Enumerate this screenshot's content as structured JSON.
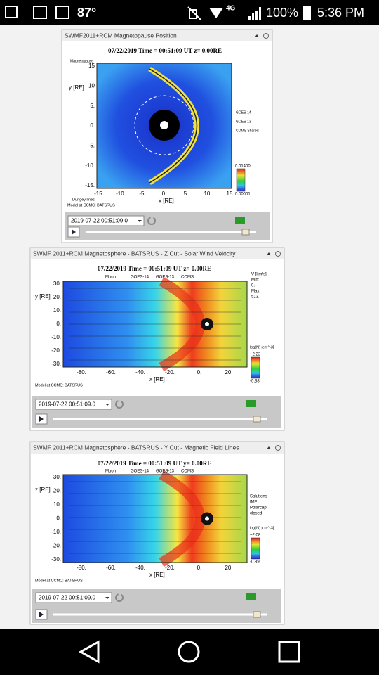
{
  "status_bar": {
    "temperature": "87°",
    "network": "4G",
    "battery": "100%",
    "time": "5:36 PM"
  },
  "panels": [
    {
      "title": "SWMF2011+RCM Magnetopause Position",
      "plot": {
        "heading": "07/22/2019 Time = 00:51:09 UT z= 0.00RE",
        "key": "Magnetopause",
        "y_label": "y [RE]",
        "x_label": "x [RE]",
        "yticks": [
          "15",
          "10",
          "5.",
          "0.",
          "5.",
          "-10.",
          "-15."
        ],
        "xticks": [
          "-15.",
          "-10.",
          "-5.",
          "0.",
          "5.",
          "10.",
          "15"
        ],
        "legend": [
          "GOES-14",
          "GOES-13",
          "COMS Shared"
        ],
        "colorbar": [
          "0.01400",
          "0.00001"
        ],
        "footer": [
          "--- Dungey lines",
          "Model at CCMC: BATSRUS"
        ]
      },
      "date": "2019-07-22 00:51:09.0"
    },
    {
      "title": "SWMF 2011+RCM Magnetosphere - BATSRUS - Z Cut - Solar Wind Velocity",
      "plot": {
        "heading": "07/22/2019 Time = 00:51:09 UT z= 0.00RE",
        "y_label": "y [RE]",
        "x_label": "x [RE]",
        "yticks": [
          "30.",
          "20.",
          "10.",
          "0.",
          "-10.",
          "-20.",
          "-30."
        ],
        "xticks": [
          "-80.",
          "-60.",
          "-40.",
          "-20.",
          "0.",
          "20."
        ],
        "legend": [
          "Moon",
          "GOES-14",
          "GOES-13",
          "COMS"
        ],
        "side": [
          "V [km/s]",
          "Min:",
          "0.",
          "Max:",
          "513."
        ],
        "colorbar": [
          "log(N) [cm^-3]",
          "+2.22",
          "-0.38"
        ],
        "footer": [
          "Model at CCMC: BATSRUS"
        ]
      },
      "date": "2019-07-22 00:51:09.0"
    },
    {
      "title": "SWMF 2011+RCM Magnetosphere - BATSRUS - Y Cut - Magnetic Field Lines",
      "plot": {
        "heading": "07/22/2019 Time = 00:51:09 UT y= 0.00RE",
        "y_label": "z [RE]",
        "x_label": "x [RE]",
        "yticks": [
          "30.",
          "20.",
          "10.",
          "0.",
          "-10.",
          "-20.",
          "-30."
        ],
        "xticks": [
          "-80.",
          "-60.",
          "-40.",
          "-20.",
          "0.",
          "20."
        ],
        "legend": [
          "Moon",
          "GOES-14",
          "GOES-13",
          "COMS"
        ],
        "side": [
          "Solutions",
          "IMF",
          "Polarcap",
          "closed"
        ],
        "colorbar": [
          "log(N) [cm^-3]",
          "+2.08",
          "-0.89"
        ],
        "footer": [
          "Model at CCMC: BATSRUS"
        ]
      },
      "date": "2019-07-22 00:51:09.0"
    }
  ]
}
